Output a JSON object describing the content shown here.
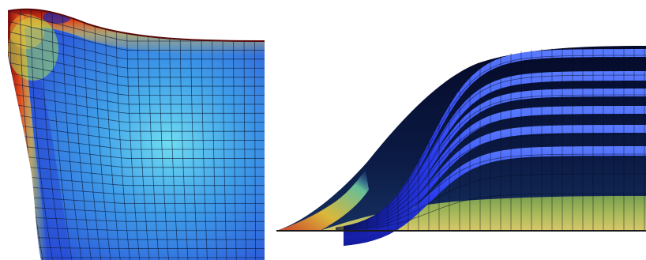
{
  "figure": {
    "panels": [
      {
        "id": "left",
        "subject": "deformed-mesh-heatmap",
        "colormap": [
          "#2a3fd0",
          "#3a78e6",
          "#55c8ee",
          "#9be36e",
          "#f4c430",
          "#d64020",
          "#7a0a0a"
        ]
      },
      {
        "id": "right",
        "subject": "wave-layers-mesh",
        "colormap": [
          "#0a1030",
          "#1a2ac8",
          "#2b49f0",
          "#3b7cc0",
          "#6fa450",
          "#c8d070",
          "#e8b840"
        ]
      }
    ]
  }
}
